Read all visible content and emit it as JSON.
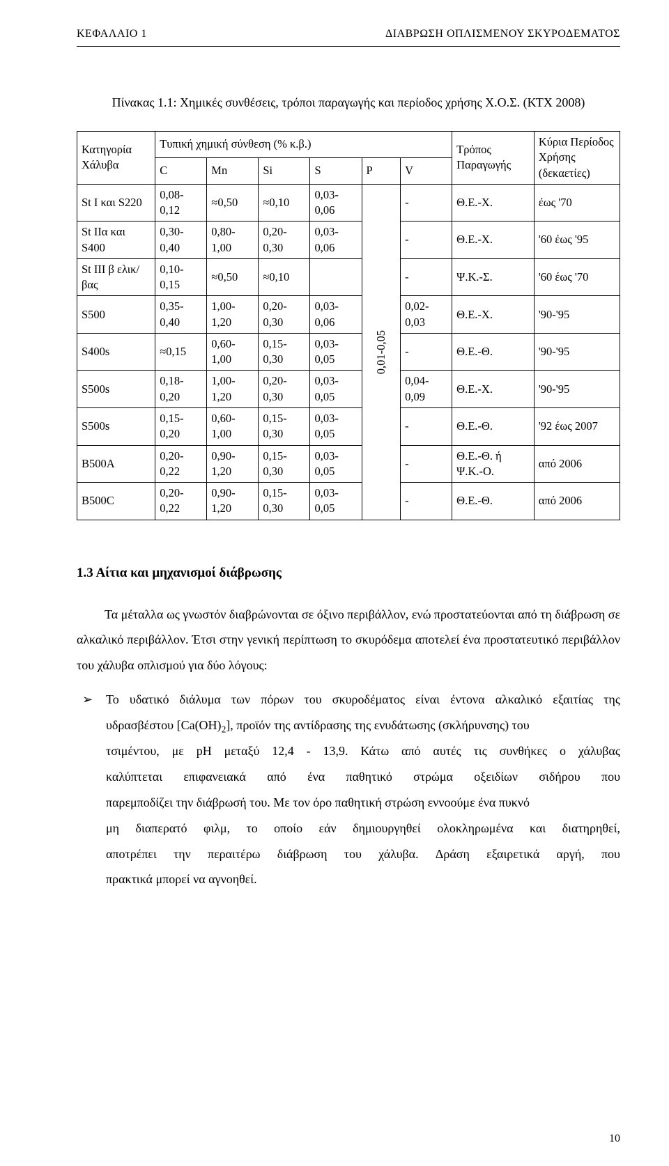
{
  "header": {
    "left": "ΚΕΦΑΛΑΙΟ 1",
    "right": "ΔΙΑΒΡΩΣΗ ΟΠΛΙΣΜΕΝΟΥ ΣΚΥΡΟΔΕΜΑΤΟΣ"
  },
  "caption": "Πίνακας 1.1: Χημικές συνθέσεις, τρόποι παραγωγής και περίοδος χρήσης Χ.Ο.Σ. (ΚΤΧ 2008)",
  "table": {
    "group_label": "Τυπική χημική σύνθεση (% κ.β.)",
    "cols": {
      "cat": "Κατηγορία Χάλυβα",
      "C": "C",
      "Mn": "Mn",
      "Si": "Si",
      "S": "S",
      "P": "P",
      "V": "V",
      "method": "Τρόπος Παραγωγής",
      "period": "Κύρια Περίοδος Χρήσης (δεκαετίες)"
    },
    "p_vertical": "0,01-0,05",
    "rows": [
      {
        "cat": "St I και S220",
        "C": "0,08-0,12",
        "Mn": "≈0,50",
        "Si": "≈0,10",
        "S": "0,03-0,06",
        "V": "-",
        "method": "Θ.Ε.-Χ.",
        "period": "έως '70"
      },
      {
        "cat": "St IIα και S400",
        "C": "0,30-0,40",
        "Mn": "0,80-1,00",
        "Si": "0,20-0,30",
        "S": "0,03-0,06",
        "V": "-",
        "method": "Θ.Ε.-Χ.",
        "period": "'60 έως '95"
      },
      {
        "cat": "St III β ελικ/βας",
        "C": "0,10-0,15",
        "Mn": "≈0,50",
        "Si": "≈0,10",
        "S": "",
        "V": "-",
        "method": "Ψ.Κ.-Σ.",
        "period": "'60 έως '70"
      },
      {
        "cat": "S500",
        "C": "0,35-0,40",
        "Mn": "1,00-1,20",
        "Si": "0,20-0,30",
        "S": "0,03-0,06",
        "V": "0,02-0,03",
        "method": "Θ.Ε.-Χ.",
        "period": "'90-'95"
      },
      {
        "cat": "S400s",
        "C": "≈0,15",
        "Mn": "0,60-1,00",
        "Si": "0,15-0,30",
        "S": "0,03-0,05",
        "V": "-",
        "method": "Θ.Ε.-Θ.",
        "period": "'90-'95"
      },
      {
        "cat": "S500s",
        "C": "0,18-0,20",
        "Mn": "1,00-1,20",
        "Si": "0,20-0,30",
        "S": "0,03-0,05",
        "V": "0,04-0,09",
        "method": "Θ.Ε.-Χ.",
        "period": "'90-'95"
      },
      {
        "cat": "S500s",
        "C": "0,15-0,20",
        "Mn": "0,60-1,00",
        "Si": "0,15-0,30",
        "S": "0,03-0,05",
        "V": "-",
        "method": "Θ.Ε.-Θ.",
        "period": "'92 έως 2007"
      },
      {
        "cat": "B500A",
        "C": "0,20-0,22",
        "Mn": "0,90-1,20",
        "Si": "0,15-0,30",
        "S": "0,03-0,05",
        "V": "-",
        "method": "Θ.Ε.-Θ. ή Ψ.Κ.-Ο.",
        "period": "από 2006"
      },
      {
        "cat": "B500C",
        "C": "0,20-0,22",
        "Mn": "0,90-1,20",
        "Si": "0,15-0,30",
        "S": "0,03-0,05",
        "V": "-",
        "method": "Θ.Ε.-Θ.",
        "period": "από 2006"
      }
    ]
  },
  "section_title": "1.3 Αίτια και μηχανισμοί διάβρωσης",
  "para1": "Τα μέταλλα ως γνωστόν διαβρώνονται σε όξινο περιβάλλον, ενώ προστατεύονται από τη διάβρωση σε αλκαλικό περιβάλλον. Έτσι στην γενική περίπτωση το σκυρόδεμα αποτελεί ένα προστατευτικό περιβάλλον του χάλυβα οπλισμού για δύο λόγους:",
  "bullet_lines": [
    [
      "Το",
      "υδατικό",
      "διάλυμα",
      "των",
      "πόρων",
      "του",
      "σκυροδέματος",
      "είναι",
      "έντονα",
      "αλκαλικό",
      "εξαιτίας",
      "της"
    ],
    "υδρασβέστου [Ca(OH)2], προϊόν της αντίδρασης της ενυδάτωσης (σκλήρυνσης) του",
    [
      "τσιμέντου,",
      "με",
      "pH",
      "μεταξύ",
      "12,4",
      "-",
      "13,9.",
      "Κάτω",
      "από",
      "αυτές",
      "τις",
      "συνθήκες",
      "ο",
      "χάλυβας"
    ],
    [
      "καλύπτεται",
      "επιφανειακά",
      "από",
      "ένα",
      "παθητικό",
      "στρώμα",
      "οξειδίων",
      "σιδήρου",
      "που"
    ],
    "παρεμποδίζει την διάβρωσή του. Με τον όρο παθητική στρώση εννοούμε ένα πυκνό",
    [
      "μη",
      "διαπερατό",
      "φιλμ,",
      "το",
      "οποίο",
      "εάν",
      "δημιουργηθεί",
      "ολοκληρωμένα",
      "και",
      "διατηρηθεί,"
    ],
    [
      "αποτρέπει",
      "την",
      "περαιτέρω",
      "διάβρωση",
      "του",
      "χάλυβα.",
      "Δράση",
      "εξαιρετικά",
      "αργή,",
      "που"
    ],
    "πρακτικά μπορεί να αγνοηθεί."
  ],
  "page_number": "10"
}
